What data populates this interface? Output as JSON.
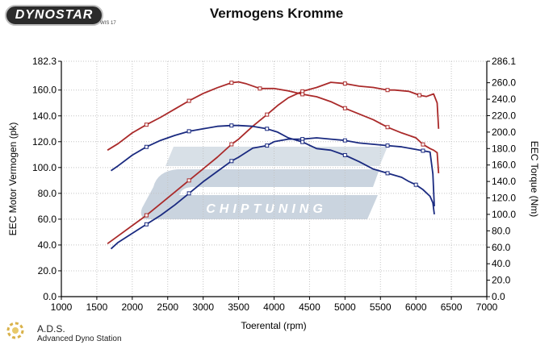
{
  "header": {
    "logo_text": "DYNOSTAR",
    "logo_subtext": "WIS 17"
  },
  "footer": {
    "brand_short": "A.D.S.",
    "brand_full": "Advanced Dyno Station"
  },
  "watermark": {
    "text": "CHIPTUNING",
    "color": "#b8c6d4"
  },
  "chart_data": {
    "type": "line",
    "title": "Vermogens Kromme",
    "xlabel": "Toerental (rpm)",
    "ylabel_left": "EEC Motor Vermogen (pk)",
    "ylabel_right": "EEC Torque (Nm)",
    "xlim": [
      1000,
      7000
    ],
    "x_ticks": [
      1000,
      1500,
      2000,
      2500,
      3000,
      3500,
      4000,
      4500,
      5000,
      5500,
      6000,
      6500,
      7000
    ],
    "ylim_left": [
      0,
      182.3
    ],
    "y_ticks_left": [
      "0.0",
      "20.0",
      "40.0",
      "60.0",
      "80.0",
      "100.0",
      "120.0",
      "140.0",
      "160.0",
      "182.3"
    ],
    "ylim_right": [
      0,
      286.1
    ],
    "y_ticks_right": [
      "0.0",
      "20.0",
      "40.0",
      "60.0",
      "80.0",
      "100.0",
      "120.0",
      "140.0",
      "160.0",
      "180.0",
      "200.0",
      "220.0",
      "240.0",
      "260.0",
      "286.1"
    ],
    "grid": true,
    "series": [
      {
        "color": "#aa2a2a",
        "axis": "left",
        "x": [
          1650,
          1800,
          2000,
          2200,
          2400,
          2600,
          2800,
          3000,
          3200,
          3400,
          3500,
          3700,
          3900,
          4050,
          4200,
          4400,
          4600,
          4800,
          5000,
          5200,
          5400,
          5600,
          5700,
          5900,
          6050,
          6150,
          6250,
          6300,
          6320
        ],
        "y": [
          41,
          47,
          55,
          63,
          72,
          81,
          90,
          99,
          108,
          118,
          122,
          132,
          141,
          148,
          154,
          159,
          162,
          166,
          165,
          163,
          162,
          160,
          160,
          159,
          156,
          155,
          157,
          150,
          130
        ]
      },
      {
        "color": "#aa2a2a",
        "axis": "right",
        "x": [
          1650,
          1800,
          2000,
          2200,
          2400,
          2600,
          2800,
          3000,
          3200,
          3400,
          3500,
          3600,
          3800,
          4000,
          4200,
          4400,
          4600,
          4800,
          5000,
          5200,
          5400,
          5600,
          5800,
          6000,
          6100,
          6200,
          6250,
          6300,
          6320
        ],
        "y": [
          178,
          186,
          199,
          209,
          218,
          228,
          238,
          247,
          254,
          260,
          261,
          259,
          253,
          253,
          250,
          246,
          243,
          237,
          229,
          222,
          215,
          206,
          199,
          193,
          185,
          180,
          178,
          175,
          150
        ]
      },
      {
        "color": "#1a2a80",
        "axis": "left",
        "x": [
          1700,
          1800,
          2000,
          2200,
          2400,
          2600,
          2800,
          3000,
          3200,
          3400,
          3500,
          3700,
          3900,
          4000,
          4200,
          4400,
          4600,
          4800,
          5000,
          5200,
          5400,
          5600,
          5800,
          6000,
          6100,
          6200,
          6240,
          6260
        ],
        "y": [
          37,
          42,
          49,
          56,
          63,
          71,
          80,
          89,
          97,
          105,
          108,
          115,
          117,
          120,
          122,
          122,
          123,
          122,
          121,
          119,
          118,
          117,
          116,
          114,
          113,
          112,
          95,
          70
        ]
      },
      {
        "color": "#1a2a80",
        "axis": "right",
        "x": [
          1700,
          1800,
          2000,
          2200,
          2400,
          2600,
          2800,
          3000,
          3200,
          3400,
          3500,
          3700,
          3900,
          4050,
          4200,
          4400,
          4600,
          4800,
          5000,
          5200,
          5400,
          5600,
          5800,
          5900,
          6000,
          6100,
          6200,
          6240,
          6260
        ],
        "y": [
          153,
          159,
          172,
          182,
          190,
          196,
          201,
          204,
          207,
          208,
          208,
          207,
          204,
          200,
          193,
          188,
          180,
          178,
          172,
          164,
          155,
          150,
          145,
          140,
          136,
          130,
          122,
          114,
          100
        ]
      }
    ]
  }
}
